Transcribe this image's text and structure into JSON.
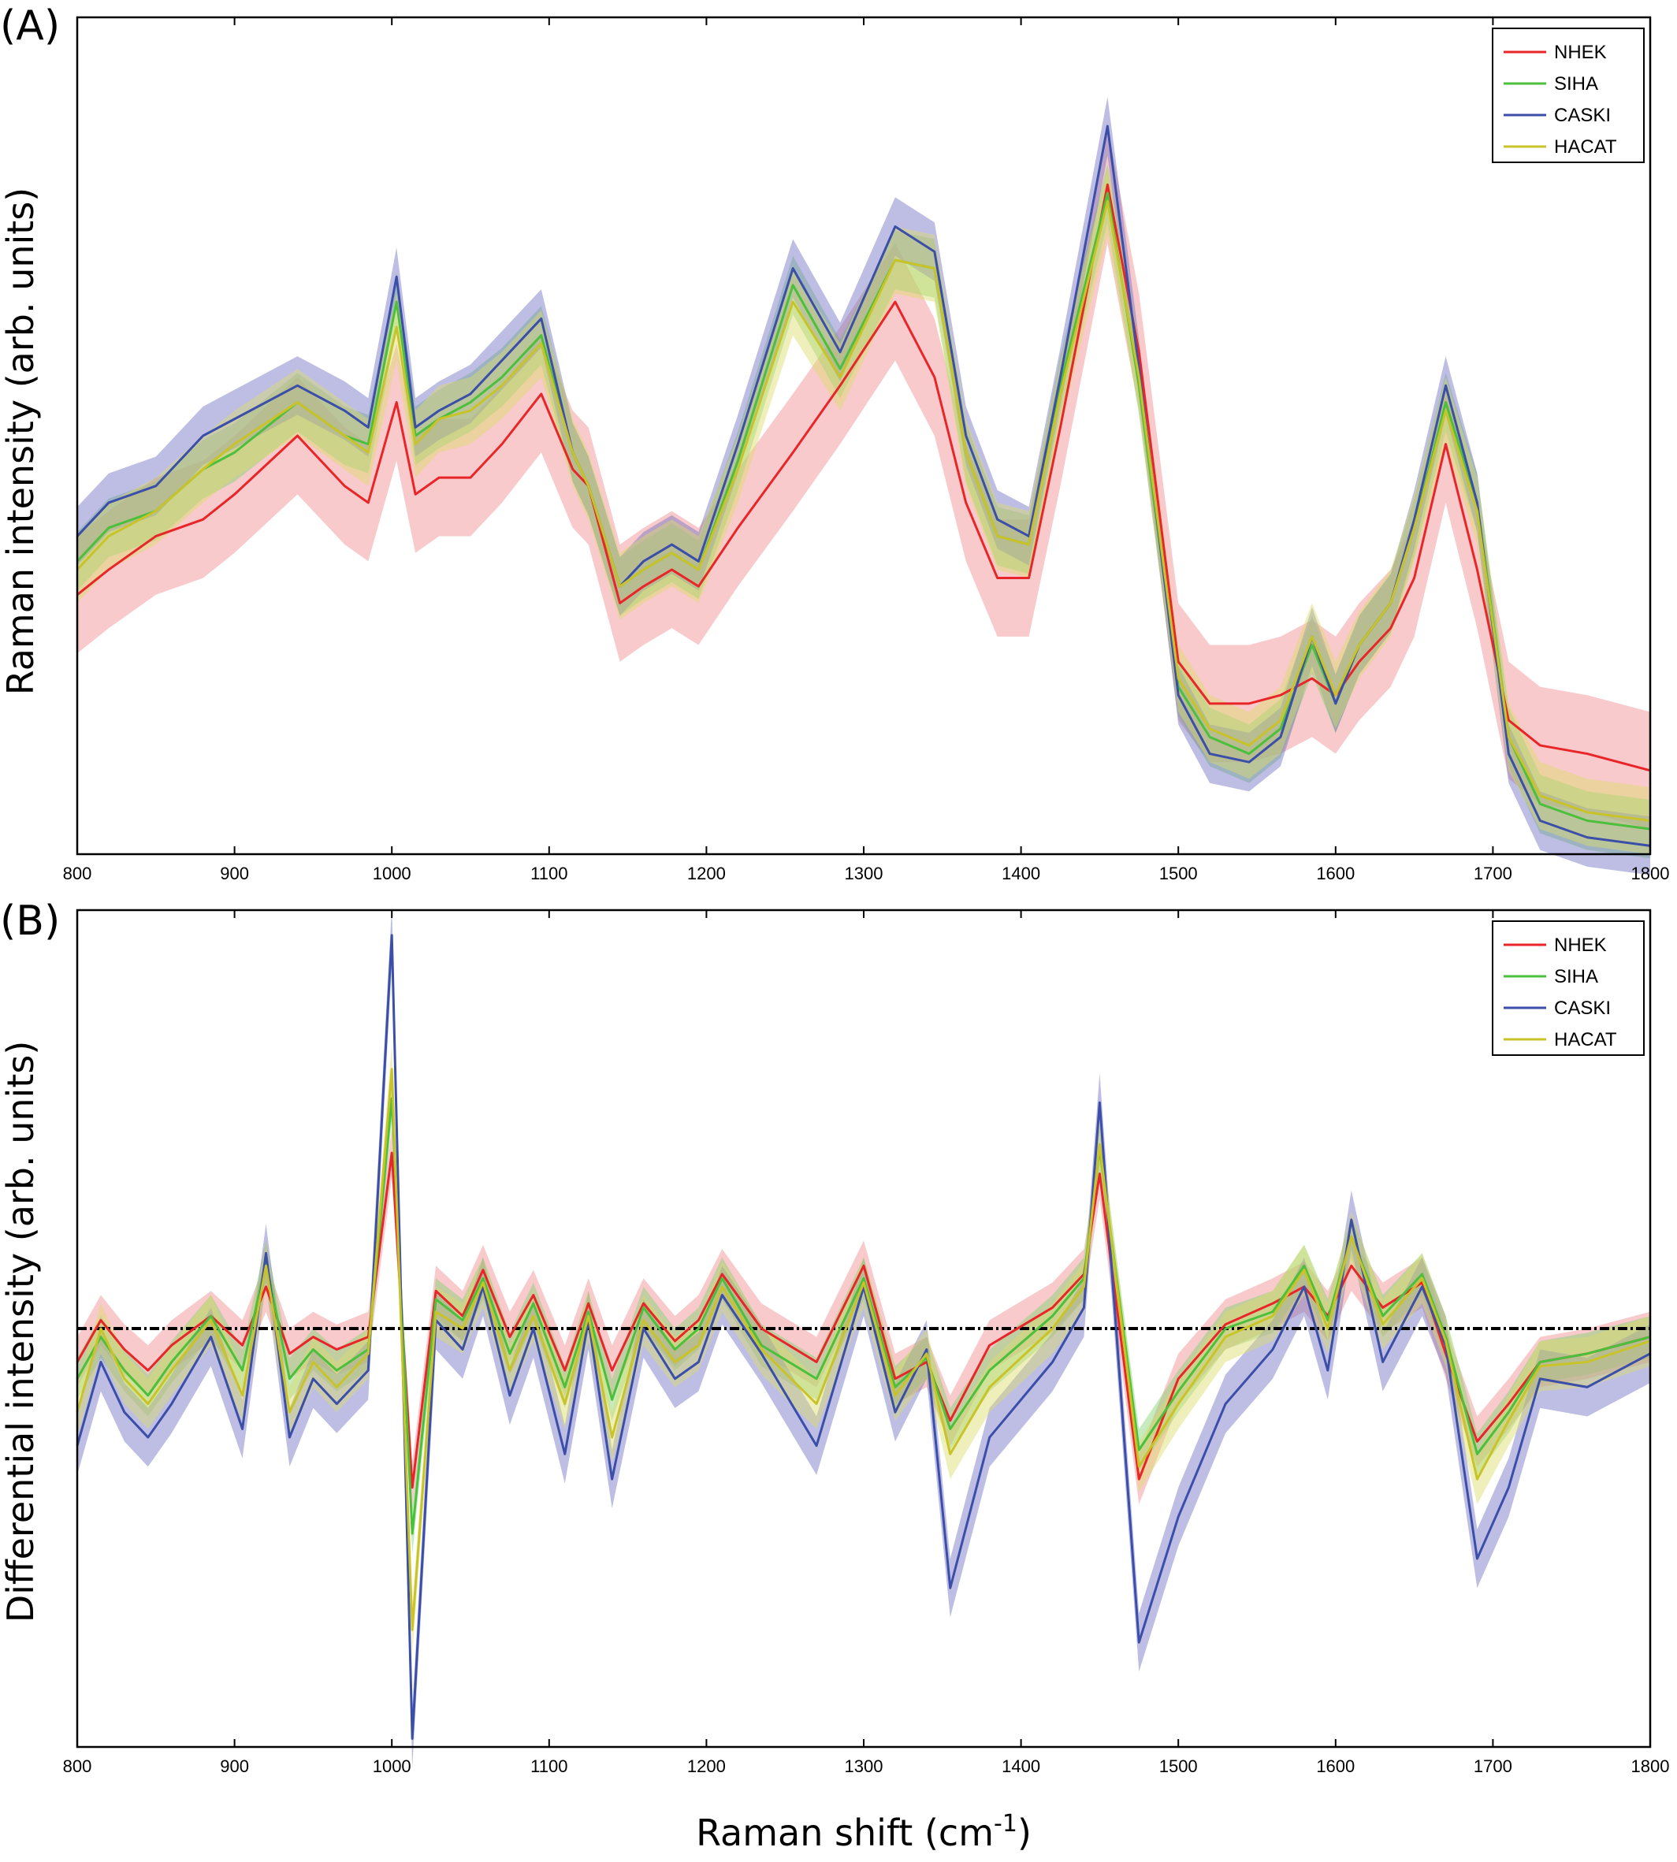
{
  "colors": {
    "NHEK": "#e8262a",
    "SIHA": "#4cbf3c",
    "CASKI": "#3b4ea8",
    "HACAT": "#c9c32a",
    "NHEK_band": "#f08a8c",
    "SIHA_band": "#7fd272",
    "CASKI_band": "#6f6fc4",
    "HACAT_band": "#dcdc6a"
  },
  "xlabel": "Raman shift (cm",
  "xlabel_sup": "-1",
  "xlabel_close": ")",
  "chart_data": [
    {
      "panel": "(A)",
      "type": "line",
      "ylabel": "Raman intensity (arb. units)",
      "xlim": [
        800,
        1800
      ],
      "ylim": [
        0,
        1
      ],
      "x_ticks": [
        800,
        900,
        1000,
        1100,
        1200,
        1300,
        1400,
        1500,
        1600,
        1700,
        1800
      ],
      "y_ticks_shown": false,
      "legend": {
        "position": "top-right",
        "entries": [
          "NHEK",
          "SIHA",
          "CASKI",
          "HACAT"
        ]
      },
      "x": [
        800,
        820,
        850,
        880,
        900,
        940,
        970,
        985,
        1003,
        1015,
        1030,
        1050,
        1070,
        1095,
        1115,
        1125,
        1145,
        1160,
        1178,
        1195,
        1220,
        1255,
        1285,
        1320,
        1345,
        1365,
        1385,
        1405,
        1425,
        1455,
        1475,
        1500,
        1520,
        1545,
        1565,
        1585,
        1600,
        1615,
        1635,
        1650,
        1670,
        1690,
        1710,
        1730,
        1760,
        1800
      ],
      "series": [
        {
          "name": "NHEK",
          "values": [
            0.31,
            0.34,
            0.38,
            0.4,
            0.43,
            0.5,
            0.44,
            0.42,
            0.54,
            0.43,
            0.45,
            0.45,
            0.49,
            0.55,
            0.46,
            0.44,
            0.3,
            0.32,
            0.34,
            0.32,
            0.39,
            0.48,
            0.56,
            0.66,
            0.57,
            0.42,
            0.33,
            0.33,
            0.51,
            0.8,
            0.6,
            0.23,
            0.18,
            0.18,
            0.19,
            0.21,
            0.19,
            0.23,
            0.27,
            0.33,
            0.49,
            0.34,
            0.16,
            0.13,
            0.12,
            0.1
          ]
        },
        {
          "name": "SIHA",
          "values": [
            0.35,
            0.39,
            0.41,
            0.46,
            0.48,
            0.54,
            0.5,
            0.49,
            0.66,
            0.5,
            0.52,
            0.54,
            0.57,
            0.62,
            0.48,
            0.44,
            0.32,
            0.34,
            0.36,
            0.34,
            0.47,
            0.68,
            0.58,
            0.71,
            0.7,
            0.48,
            0.38,
            0.37,
            0.56,
            0.79,
            0.56,
            0.2,
            0.14,
            0.12,
            0.15,
            0.25,
            0.18,
            0.25,
            0.3,
            0.39,
            0.54,
            0.42,
            0.14,
            0.06,
            0.04,
            0.03
          ]
        },
        {
          "name": "CASKI",
          "values": [
            0.38,
            0.42,
            0.44,
            0.5,
            0.52,
            0.56,
            0.53,
            0.51,
            0.69,
            0.51,
            0.53,
            0.55,
            0.59,
            0.64,
            0.48,
            0.44,
            0.32,
            0.35,
            0.37,
            0.35,
            0.49,
            0.7,
            0.6,
            0.75,
            0.72,
            0.5,
            0.4,
            0.38,
            0.57,
            0.87,
            0.58,
            0.19,
            0.12,
            0.11,
            0.14,
            0.26,
            0.18,
            0.25,
            0.3,
            0.4,
            0.56,
            0.42,
            0.12,
            0.04,
            0.02,
            0.01
          ]
        },
        {
          "name": "HACAT",
          "values": [
            0.34,
            0.38,
            0.41,
            0.46,
            0.49,
            0.54,
            0.5,
            0.48,
            0.63,
            0.49,
            0.52,
            0.53,
            0.56,
            0.61,
            0.48,
            0.44,
            0.32,
            0.34,
            0.36,
            0.34,
            0.46,
            0.66,
            0.57,
            0.71,
            0.7,
            0.48,
            0.38,
            0.37,
            0.55,
            0.78,
            0.57,
            0.21,
            0.15,
            0.13,
            0.16,
            0.26,
            0.19,
            0.25,
            0.3,
            0.39,
            0.53,
            0.41,
            0.14,
            0.07,
            0.05,
            0.04
          ]
        }
      ],
      "band_half_width": {
        "NHEK": 0.07,
        "SIHA": 0.035,
        "CASKI": 0.035,
        "HACAT": 0.04
      }
    },
    {
      "panel": "(B)",
      "type": "line",
      "ylabel": "Differential intensity (arb. units)",
      "xlim": [
        800,
        1800
      ],
      "ylim": [
        -1,
        1
      ],
      "x_ticks": [
        800,
        900,
        1000,
        1100,
        1200,
        1300,
        1400,
        1500,
        1600,
        1700,
        1800
      ],
      "y_ticks_shown": false,
      "zero_line": true,
      "legend": {
        "position": "top-right",
        "entries": [
          "NHEK",
          "SIHA",
          "CASKI",
          "HACAT"
        ]
      },
      "x": [
        800,
        815,
        830,
        845,
        860,
        885,
        905,
        920,
        935,
        950,
        965,
        985,
        1000,
        1013,
        1028,
        1045,
        1058,
        1075,
        1090,
        1110,
        1125,
        1140,
        1160,
        1180,
        1195,
        1210,
        1235,
        1270,
        1300,
        1320,
        1340,
        1355,
        1380,
        1420,
        1440,
        1450,
        1475,
        1500,
        1530,
        1560,
        1580,
        1595,
        1610,
        1630,
        1655,
        1670,
        1690,
        1710,
        1730,
        1760,
        1800
      ],
      "series": [
        {
          "name": "NHEK",
          "values": [
            -0.08,
            0.02,
            -0.05,
            -0.1,
            -0.04,
            0.03,
            -0.04,
            0.1,
            -0.06,
            -0.02,
            -0.05,
            -0.02,
            0.42,
            -0.38,
            0.09,
            0.03,
            0.14,
            -0.02,
            0.08,
            -0.1,
            0.06,
            -0.1,
            0.06,
            -0.03,
            0.02,
            0.13,
            0.0,
            -0.08,
            0.15,
            -0.12,
            -0.08,
            -0.22,
            -0.04,
            0.05,
            0.13,
            0.37,
            -0.36,
            -0.12,
            0.01,
            0.06,
            0.1,
            0.03,
            0.15,
            0.05,
            0.11,
            -0.06,
            -0.27,
            -0.18,
            -0.08,
            -0.06,
            -0.02
          ]
        },
        {
          "name": "SIHA",
          "values": [
            -0.12,
            -0.02,
            -0.1,
            -0.16,
            -0.08,
            0.03,
            -0.1,
            0.16,
            -0.12,
            -0.05,
            -0.1,
            -0.05,
            0.55,
            -0.49,
            0.07,
            0.02,
            0.12,
            -0.06,
            0.06,
            -0.14,
            0.04,
            -0.17,
            0.05,
            -0.05,
            0.0,
            0.12,
            -0.04,
            -0.12,
            0.12,
            -0.14,
            -0.07,
            -0.24,
            -0.1,
            0.03,
            0.12,
            0.43,
            -0.29,
            -0.15,
            0.0,
            0.04,
            0.15,
            0.02,
            0.22,
            0.03,
            0.13,
            -0.02,
            -0.3,
            -0.2,
            -0.08,
            -0.06,
            -0.02
          ]
        },
        {
          "name": "CASKI",
          "values": [
            -0.28,
            -0.08,
            -0.2,
            -0.26,
            -0.18,
            -0.02,
            -0.24,
            0.18,
            -0.26,
            -0.12,
            -0.18,
            -0.1,
            0.94,
            -0.98,
            0.02,
            -0.05,
            0.1,
            -0.16,
            0.0,
            -0.3,
            0.02,
            -0.36,
            0.0,
            -0.12,
            -0.08,
            0.08,
            -0.06,
            -0.28,
            0.1,
            -0.2,
            -0.05,
            -0.62,
            -0.26,
            -0.08,
            0.05,
            0.54,
            -0.75,
            -0.45,
            -0.18,
            -0.05,
            0.1,
            -0.1,
            0.26,
            -0.08,
            0.1,
            -0.04,
            -0.55,
            -0.38,
            -0.12,
            -0.14,
            -0.06
          ]
        },
        {
          "name": "HACAT",
          "values": [
            -0.2,
            0.0,
            -0.12,
            -0.18,
            -0.1,
            0.02,
            -0.16,
            0.15,
            -0.2,
            -0.08,
            -0.14,
            -0.06,
            0.62,
            -0.72,
            0.04,
            0.0,
            0.11,
            -0.1,
            0.03,
            -0.18,
            0.03,
            -0.26,
            0.02,
            -0.08,
            -0.04,
            0.1,
            -0.05,
            -0.18,
            0.11,
            -0.16,
            -0.06,
            -0.3,
            -0.14,
            0.0,
            0.1,
            0.44,
            -0.33,
            -0.18,
            -0.02,
            0.03,
            0.14,
            0.0,
            0.22,
            0.01,
            0.12,
            -0.03,
            -0.36,
            -0.22,
            -0.09,
            -0.08,
            -0.03
          ]
        }
      ],
      "band_half_width": {
        "NHEK": 0.06,
        "SIHA": 0.05,
        "CASKI": 0.07,
        "HACAT": 0.06
      }
    }
  ]
}
